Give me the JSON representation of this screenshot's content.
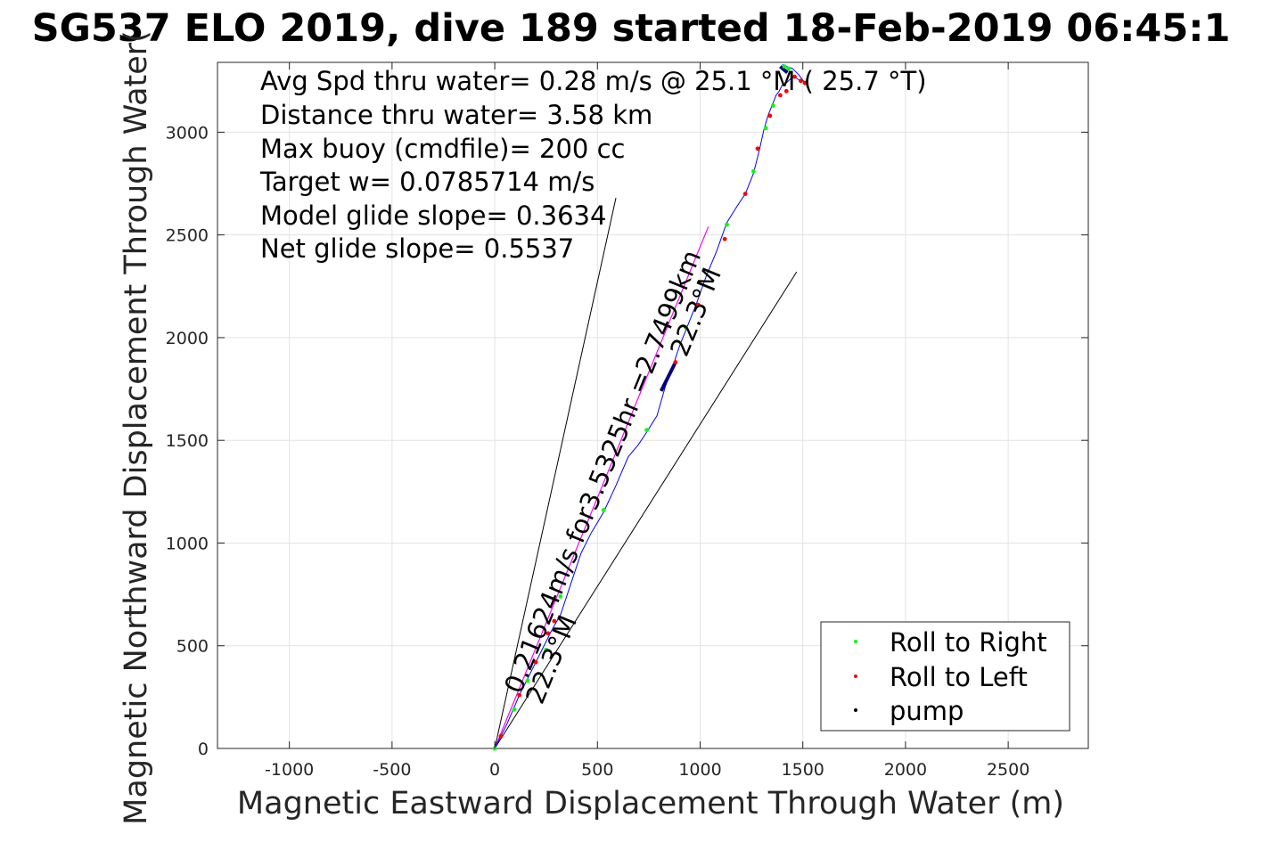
{
  "chart_data": {
    "type": "line",
    "title": "SG537 ELO 2019, dive 189 started 18-Feb-2019 06:45:1",
    "xlabel": "Magnetic Eastward Displacement Through Water (m)",
    "ylabel": "Magnetic Northward Displacement Through Water(",
    "xlim": [
      -1350,
      2890
    ],
    "ylim": [
      0,
      3340
    ],
    "xticks": [
      -1000,
      -500,
      0,
      500,
      1000,
      1500,
      2000,
      2500
    ],
    "yticks": [
      0,
      500,
      1000,
      1500,
      2000,
      2500,
      3000
    ],
    "xtick_labels": [
      "-1000",
      "-500",
      "0",
      "500",
      "1000",
      "1500",
      "2000",
      "2500"
    ],
    "ytick_labels": [
      "0",
      "500",
      "1000",
      "1500",
      "2000",
      "2500",
      "3000"
    ],
    "grid": true,
    "annotations": [
      "Avg Spd thru water=  0.28 m/s @  25.1 °M ( 25.7 °T)",
      "Distance thru water=  3.58 km",
      "Max buoy (cmdfile)= 200 cc",
      "Target w= 0.0785714 m/s",
      "Model glide slope= 0.3634",
      "Net glide slope= 0.5537"
    ],
    "rotated_labels": {
      "current_speed": "0.21624m/s for3.5325hr =2.7499km",
      "current_heading": "22.3°M",
      "lower_heading": "22.3°M"
    },
    "legend": {
      "placement": "bottom-right",
      "entries": [
        {
          "label": "Roll to Right",
          "color": "#00ff00"
        },
        {
          "label": "Roll to Left",
          "color": "#ff0000"
        },
        {
          "label": "pump",
          "color": "#000000"
        }
      ]
    },
    "colors": {
      "track": "#0000ff",
      "current_vector": "#ff00ff",
      "reference_lines": "#000000",
      "roll_right": "#00ff00",
      "roll_left": "#ff0000",
      "pump": "#000080"
    },
    "track": {
      "x": [
        0,
        30,
        60,
        90,
        120,
        160,
        200,
        240,
        280,
        320,
        370,
        420,
        470,
        530,
        590,
        650,
        700,
        740,
        790,
        830,
        860,
        900,
        940,
        980,
        1030,
        1080,
        1130,
        1180,
        1220,
        1260,
        1290,
        1310,
        1330,
        1350,
        1370,
        1385,
        1400,
        1420,
        1440,
        1460,
        1480,
        1500,
        1510,
        1480,
        1450,
        1420,
        1400
      ],
      "y": [
        0,
        60,
        120,
        190,
        260,
        340,
        420,
        500,
        580,
        650,
        800,
        950,
        1050,
        1150,
        1280,
        1420,
        1480,
        1540,
        1620,
        1760,
        1840,
        1960,
        2060,
        2160,
        2300,
        2420,
        2560,
        2640,
        2700,
        2800,
        2920,
        3010,
        3080,
        3130,
        3180,
        3200,
        3230,
        3240,
        3260,
        3270,
        3255,
        3250,
        3240,
        3280,
        3310,
        3320,
        3330
      ]
    },
    "roll_right_points": {
      "x": [
        0,
        95,
        160,
        250,
        320,
        530,
        740,
        930,
        1130,
        1260,
        1320,
        1355,
        1410,
        1430
      ],
      "y": [
        0,
        190,
        330,
        480,
        740,
        1160,
        1550,
        2050,
        2550,
        2810,
        3020,
        3130,
        3320,
        3310
      ]
    },
    "roll_left_points": {
      "x": [
        30,
        120,
        200,
        260,
        290,
        880,
        990,
        1120,
        1220,
        1280,
        1340,
        1390,
        1420,
        1460,
        1490,
        1510
      ],
      "y": [
        60,
        260,
        420,
        560,
        620,
        1880,
        2160,
        2480,
        2700,
        2920,
        3080,
        3180,
        3200,
        3270,
        3250,
        3240
      ],
      "pair_start": null
    },
    "pump_segments": [
      {
        "x": [
          810,
          880
        ],
        "y": [
          1740,
          1880
        ]
      },
      {
        "x": [
          1390,
          1425
        ],
        "y": [
          3320,
          3290
        ]
      }
    ],
    "current_vector": {
      "x": [
        0,
        1040
      ],
      "y": [
        0,
        2540
      ]
    },
    "reference_lines": [
      {
        "x": [
          0,
          590
        ],
        "y": [
          0,
          2680
        ]
      },
      {
        "x": [
          0,
          1470
        ],
        "y": [
          0,
          2320
        ]
      }
    ]
  }
}
